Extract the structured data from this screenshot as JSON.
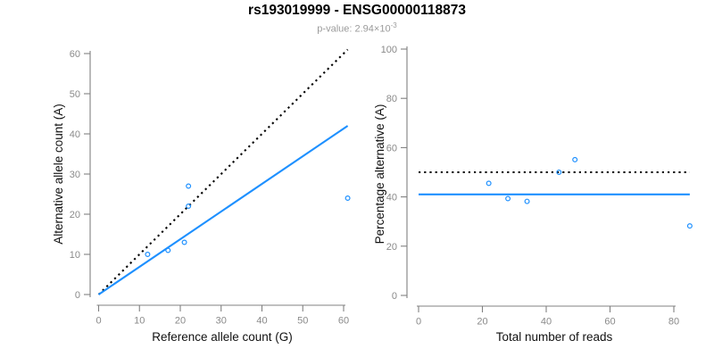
{
  "figure": {
    "title": "rs193019999 - ENSG00000118873",
    "subtitle_prefix": "p-value: 2.94×10",
    "subtitle_exponent": "-3"
  },
  "colors": {
    "accent_blue": "#1E90FF",
    "line_black": "#000000",
    "axis_line": "#808080",
    "tick_label": "#8a8a8a",
    "axis_title": "#111111",
    "title_text": "#000000",
    "subtitle_text": "#9b9b9b",
    "background": "#FFFFFF"
  },
  "chart_data": [
    {
      "name": "allele-count-scatter",
      "type": "scatter",
      "xlabel": "Reference allele count (G)",
      "ylabel": "Alternative allele count (A)",
      "xlim": [
        0,
        61
      ],
      "ylim": [
        0,
        61
      ],
      "xticks": [
        0,
        10,
        20,
        30,
        40,
        50,
        60
      ],
      "yticks": [
        0,
        10,
        20,
        30,
        40,
        50,
        60
      ],
      "grid": false,
      "legend": "none",
      "points": [
        [
          12,
          10
        ],
        [
          17,
          11
        ],
        [
          21,
          13
        ],
        [
          22,
          22
        ],
        [
          22,
          27
        ],
        [
          61,
          24
        ]
      ],
      "lines": [
        {
          "name": "identity-line",
          "style": "dotted",
          "color": "#000000",
          "x1": 0,
          "y1": 0,
          "x2": 61,
          "y2": 61
        },
        {
          "name": "fit-line",
          "style": "solid",
          "color": "#1E90FF",
          "x1": 0,
          "y1": 0,
          "x2": 61,
          "y2": 42
        }
      ]
    },
    {
      "name": "percentage-alternative-scatter",
      "type": "scatter",
      "xlabel": "Total number of reads",
      "ylabel": "Percentage alternative (A)",
      "xlim": [
        0,
        85
      ],
      "ylim": [
        0,
        100
      ],
      "xticks": [
        0,
        20,
        40,
        60,
        80
      ],
      "yticks": [
        0,
        20,
        40,
        60,
        80,
        100
      ],
      "grid": false,
      "legend": "none",
      "points": [
        [
          22,
          45.5
        ],
        [
          28,
          39.3
        ],
        [
          34,
          38.2
        ],
        [
          44,
          50
        ],
        [
          49,
          55.1
        ],
        [
          85,
          28.2
        ]
      ],
      "lines": [
        {
          "name": "null-50pct-line",
          "style": "dotted",
          "color": "#000000",
          "x1": 0,
          "x2": 85,
          "y": 50
        },
        {
          "name": "mean-pct-line",
          "style": "solid",
          "color": "#1E90FF",
          "x1": 0,
          "x2": 85,
          "y": 41
        }
      ]
    }
  ]
}
